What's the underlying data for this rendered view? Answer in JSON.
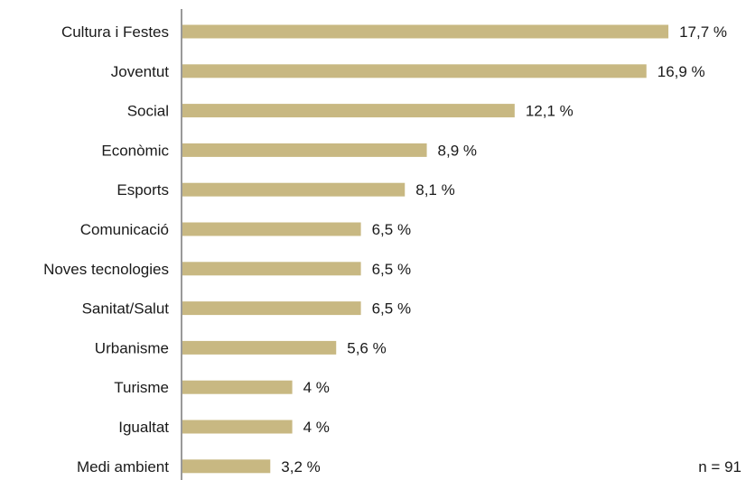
{
  "chart_data": {
    "type": "bar",
    "orientation": "horizontal",
    "categories": [
      "Cultura i Festes",
      "Joventut",
      "Social",
      "Econòmic",
      "Esports",
      "Comunicació",
      "Noves tecnologies",
      "Sanitat/Salut",
      "Urbanisme",
      "Turisme",
      "Igualtat",
      "Medi ambient"
    ],
    "values": [
      17.7,
      16.9,
      12.1,
      8.9,
      8.1,
      6.5,
      6.5,
      6.5,
      5.6,
      4,
      4,
      3.2
    ],
    "value_labels": [
      "17,7 %",
      "16,9 %",
      "12,1 %",
      "8,9 %",
      "8,1 %",
      "6,5 %",
      "6,5 %",
      "6,5 %",
      "5,6 %",
      "4 %",
      "4 %",
      "3,2 %"
    ],
    "unit": "%",
    "note": "n = 91",
    "bar_color": "#c8b882",
    "axis_color": "#333333",
    "grid": false,
    "legend": "none"
  }
}
